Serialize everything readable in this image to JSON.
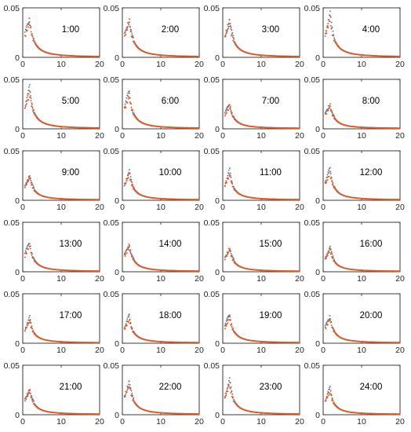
{
  "chart_data": {
    "type": "scatter",
    "layout": {
      "rows": 6,
      "cols": 4
    },
    "xlim": [
      0,
      20
    ],
    "ylim": [
      0,
      0.05
    ],
    "xticks": [
      "0",
      "10",
      "20"
    ],
    "yticks": [
      "0",
      "0.05"
    ],
    "colors": {
      "series_a": "#2878c8",
      "series_b": "#e8581c"
    },
    "panels": [
      {
        "label": "1:00",
        "peak": 0.04
      },
      {
        "label": "2:00",
        "peak": 0.04
      },
      {
        "label": "3:00",
        "peak": 0.039
      },
      {
        "label": "4:00",
        "peak": 0.043
      },
      {
        "label": "5:00",
        "peak": 0.04
      },
      {
        "label": "6:00",
        "peak": 0.037
      },
      {
        "label": "7:00",
        "peak": 0.026
      },
      {
        "label": "8:00",
        "peak": 0.026
      },
      {
        "label": "9:00",
        "peak": 0.026
      },
      {
        "label": "10:00",
        "peak": 0.029
      },
      {
        "label": "11:00",
        "peak": 0.029
      },
      {
        "label": "12:00",
        "peak": 0.031
      },
      {
        "label": "13:00",
        "peak": 0.03
      },
      {
        "label": "14:00",
        "peak": 0.029
      },
      {
        "label": "15:00",
        "peak": 0.025
      },
      {
        "label": "16:00",
        "peak": 0.025
      },
      {
        "label": "17:00",
        "peak": 0.025
      },
      {
        "label": "18:00",
        "peak": 0.027
      },
      {
        "label": "19:00",
        "peak": 0.029
      },
      {
        "label": "20:00",
        "peak": 0.028
      },
      {
        "label": "21:00",
        "peak": 0.027
      },
      {
        "label": "22:00",
        "peak": 0.034
      },
      {
        "label": "23:00",
        "peak": 0.034
      },
      {
        "label": "24:00",
        "peak": 0.026
      }
    ]
  }
}
